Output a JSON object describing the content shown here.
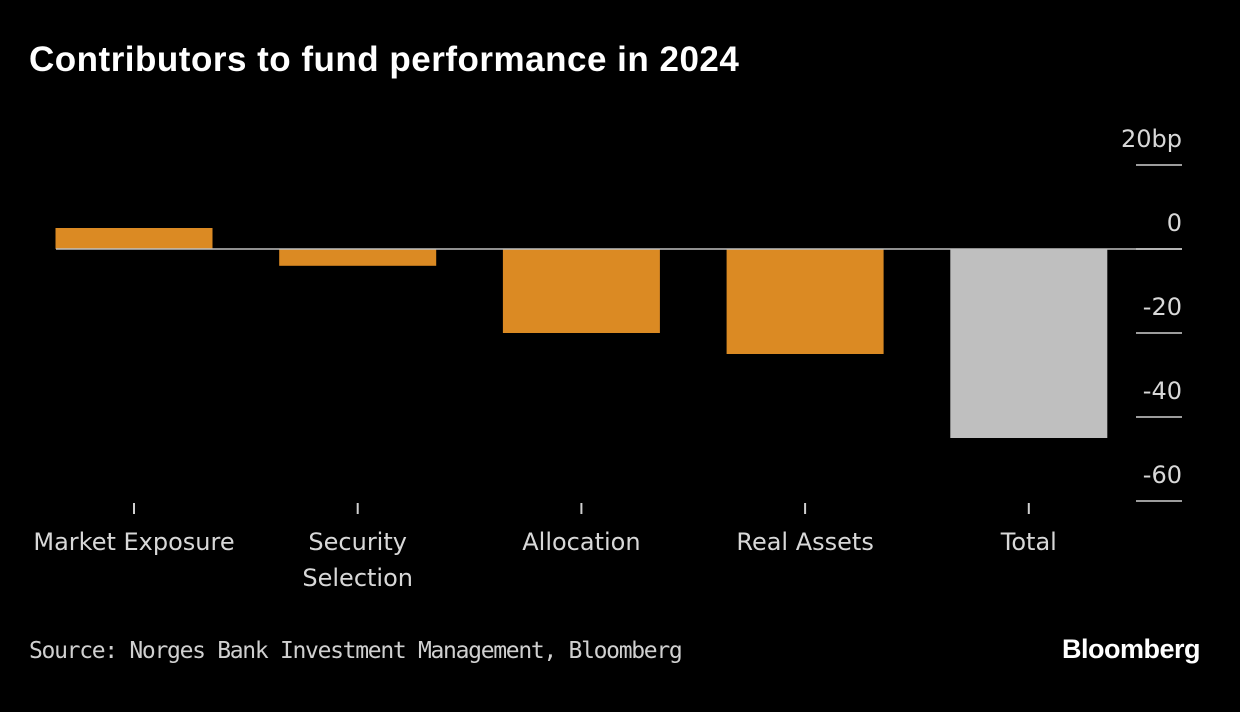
{
  "title": "Contributors to fund performance in 2024",
  "source": "Source: Norges Bank Investment Management, Bloomberg",
  "logo": "Bloomberg",
  "colors": {
    "contributor": "#db8a23",
    "total": "#bfbfbf",
    "background": "#000000",
    "zero_line": "#bfbfbf"
  },
  "chart_data": {
    "type": "bar",
    "title": "Contributors to fund performance in 2024",
    "categories": [
      [
        "Market Exposure"
      ],
      [
        "Security",
        "Selection"
      ],
      [
        "Allocation"
      ],
      [
        "Real Assets"
      ],
      [
        "Total"
      ]
    ],
    "values": [
      5,
      -4,
      -20,
      -25,
      -45
    ],
    "bar_colors": [
      "#db8a23",
      "#db8a23",
      "#db8a23",
      "#db8a23",
      "#bfbfbf"
    ],
    "unit": "bp",
    "ylim": [
      -60,
      20
    ],
    "yticks": [
      20,
      0,
      -20,
      -40,
      -60
    ],
    "ytick_labels": [
      "20bp",
      "0",
      "-20",
      "-40",
      "-60"
    ],
    "axis_side": "right",
    "grid": false
  }
}
